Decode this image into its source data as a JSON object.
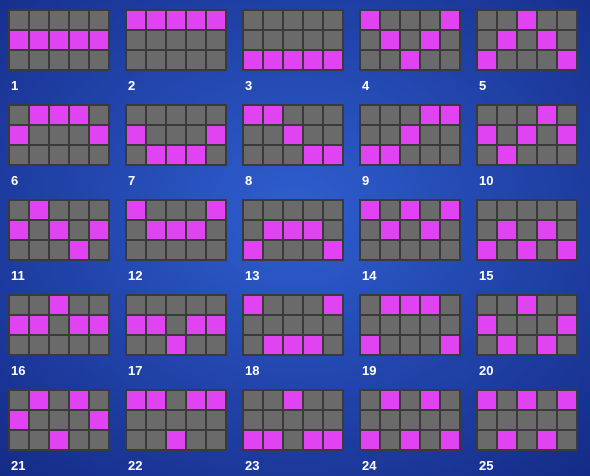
{
  "paylines": [
    {
      "label": "1",
      "rows": [
        1,
        1,
        1,
        1,
        1
      ]
    },
    {
      "label": "2",
      "rows": [
        0,
        0,
        0,
        0,
        0
      ]
    },
    {
      "label": "3",
      "rows": [
        2,
        2,
        2,
        2,
        2
      ]
    },
    {
      "label": "4",
      "rows": [
        0,
        1,
        2,
        1,
        0
      ]
    },
    {
      "label": "5",
      "rows": [
        2,
        1,
        0,
        1,
        2
      ]
    },
    {
      "label": "6",
      "rows": [
        1,
        0,
        0,
        0,
        1
      ]
    },
    {
      "label": "7",
      "rows": [
        1,
        2,
        2,
        2,
        1
      ]
    },
    {
      "label": "8",
      "rows": [
        0,
        0,
        1,
        2,
        2
      ]
    },
    {
      "label": "9",
      "rows": [
        2,
        2,
        1,
        0,
        0
      ]
    },
    {
      "label": "10",
      "rows": [
        1,
        2,
        1,
        0,
        1
      ]
    },
    {
      "label": "11",
      "rows": [
        1,
        0,
        1,
        2,
        1
      ]
    },
    {
      "label": "12",
      "rows": [
        0,
        1,
        1,
        1,
        0
      ]
    },
    {
      "label": "13",
      "rows": [
        2,
        1,
        1,
        1,
        2
      ]
    },
    {
      "label": "14",
      "rows": [
        0,
        1,
        0,
        1,
        0
      ]
    },
    {
      "label": "15",
      "rows": [
        2,
        1,
        2,
        1,
        2
      ]
    },
    {
      "label": "16",
      "rows": [
        1,
        1,
        0,
        1,
        1
      ]
    },
    {
      "label": "17",
      "rows": [
        1,
        1,
        2,
        1,
        1
      ]
    },
    {
      "label": "18",
      "rows": [
        0,
        2,
        2,
        2,
        0
      ]
    },
    {
      "label": "19",
      "rows": [
        2,
        0,
        0,
        0,
        2
      ]
    },
    {
      "label": "20",
      "rows": [
        1,
        2,
        0,
        2,
        1
      ]
    },
    {
      "label": "21",
      "rows": [
        1,
        0,
        2,
        0,
        1
      ]
    },
    {
      "label": "22",
      "rows": [
        0,
        0,
        2,
        0,
        0
      ]
    },
    {
      "label": "23",
      "rows": [
        2,
        2,
        0,
        2,
        2
      ]
    },
    {
      "label": "24",
      "rows": [
        2,
        0,
        2,
        0,
        2
      ]
    },
    {
      "label": "25",
      "rows": [
        0,
        2,
        0,
        2,
        0
      ]
    }
  ]
}
